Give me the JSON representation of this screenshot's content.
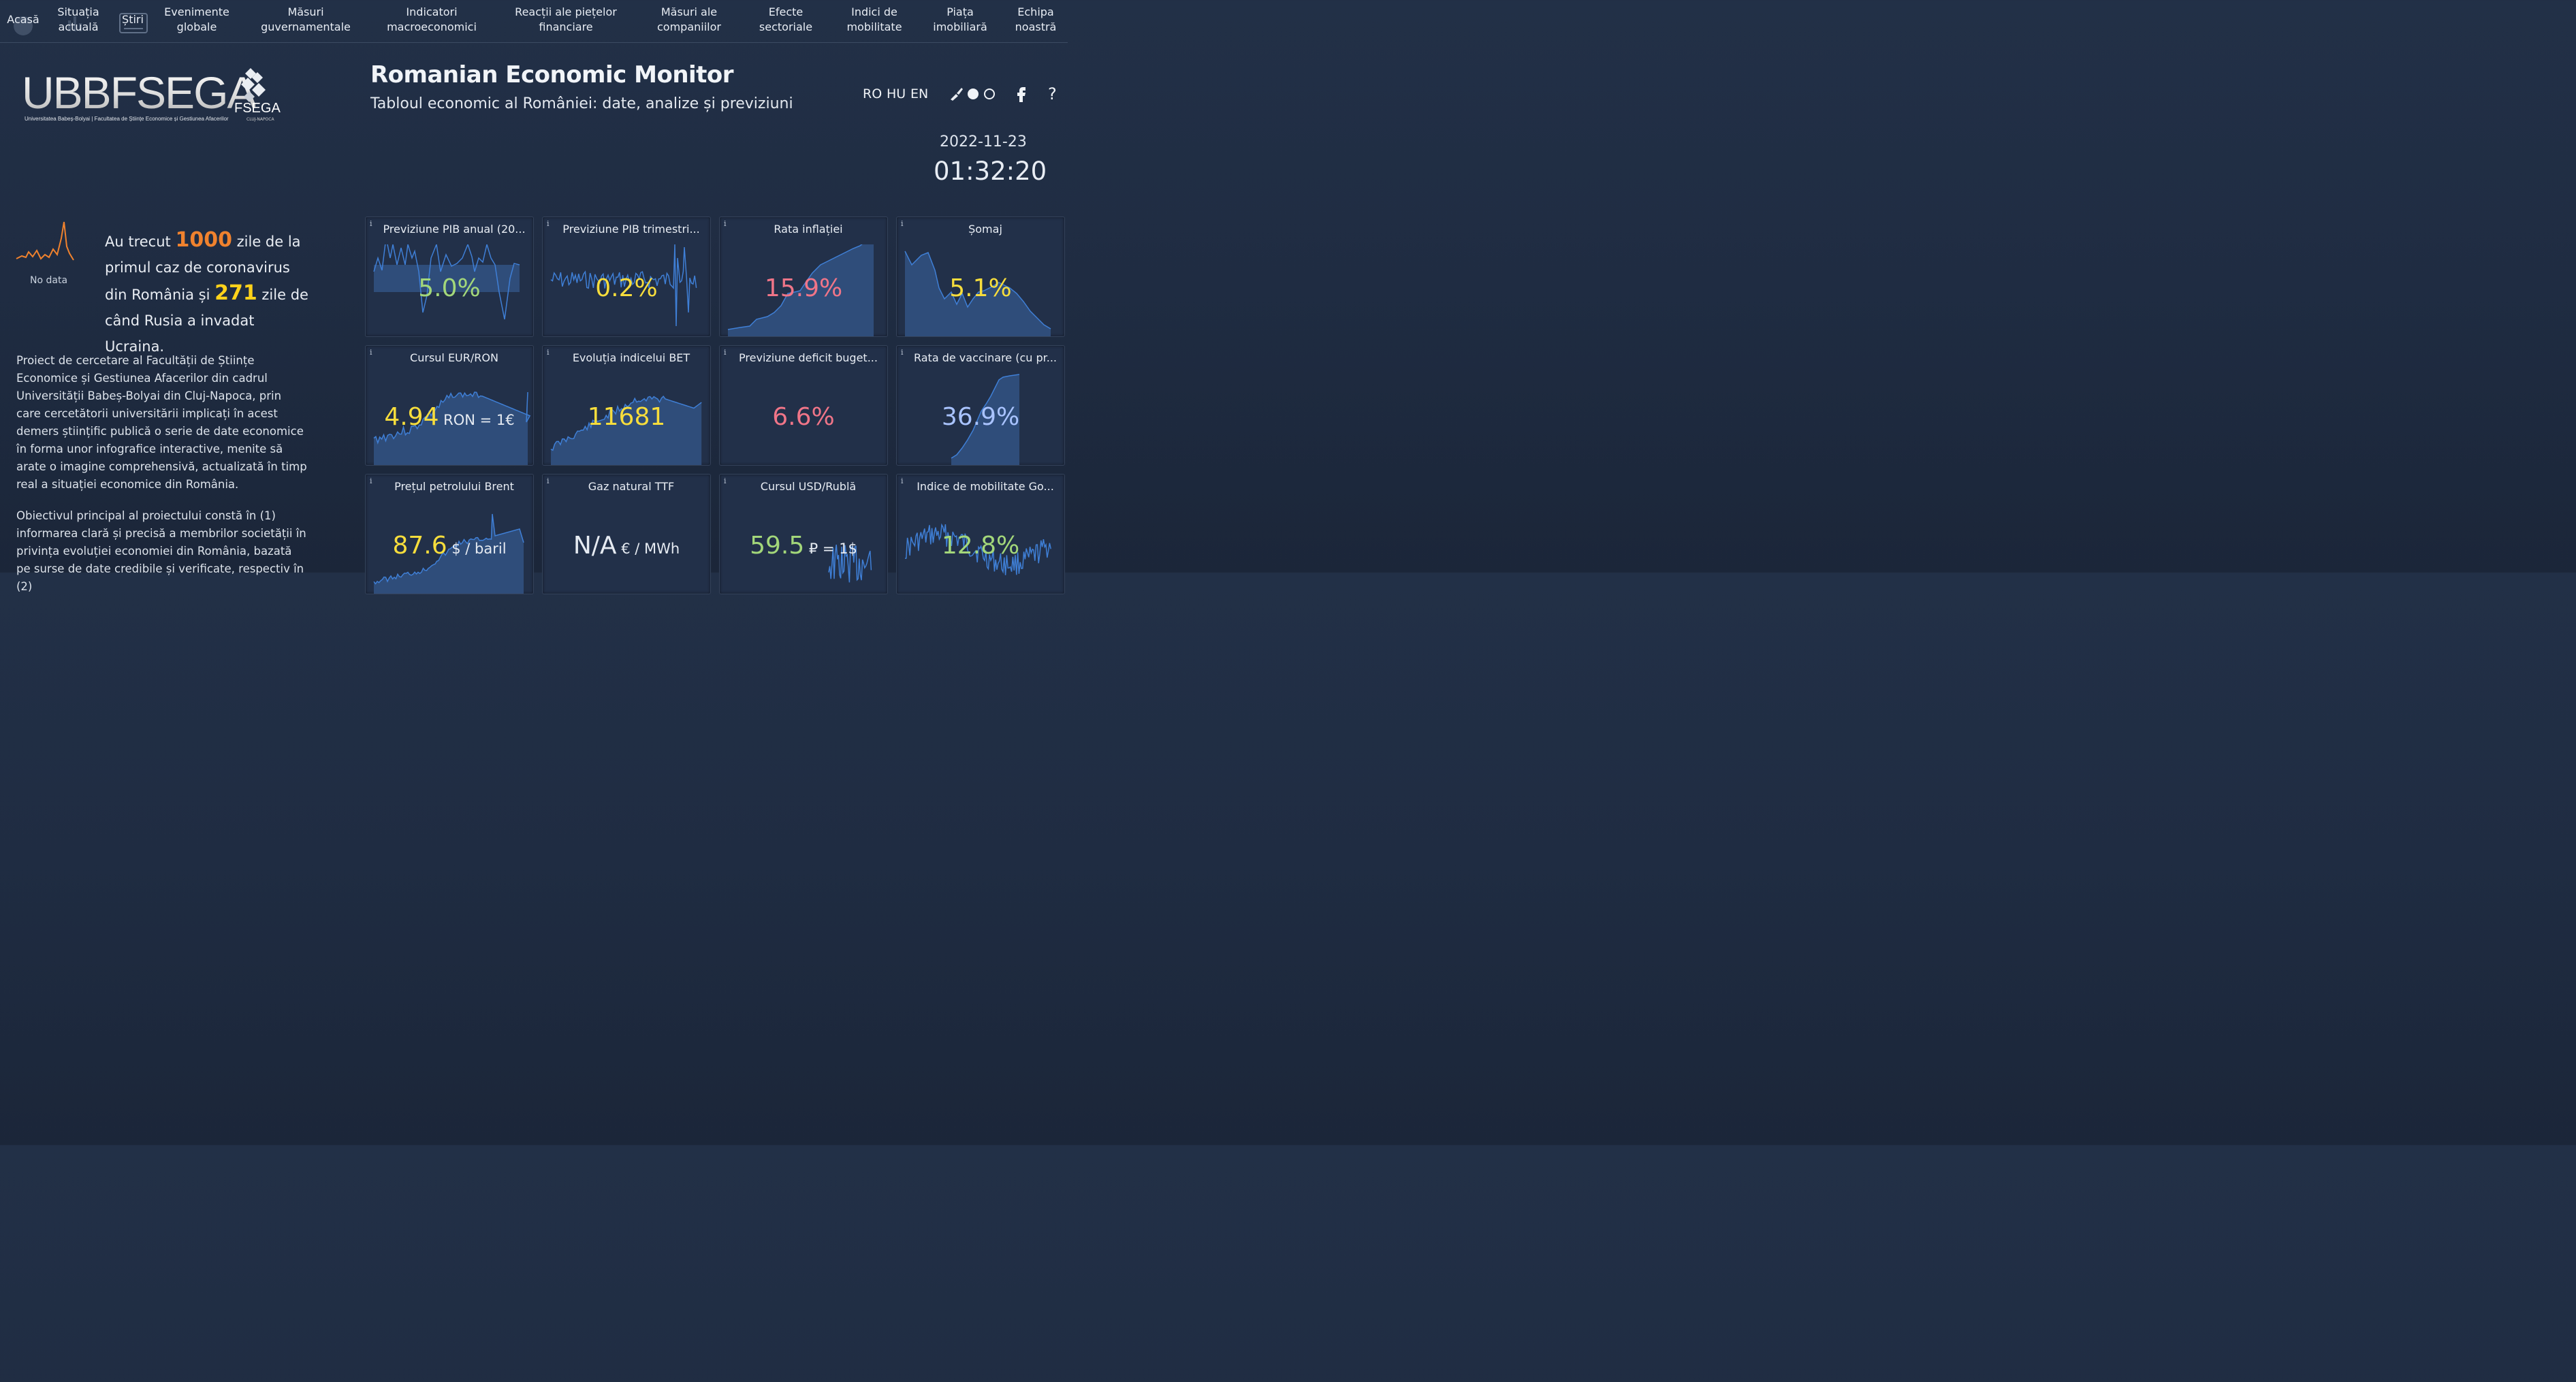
{
  "nav": [
    {
      "label": "Acasă",
      "name": "nav-acasa"
    },
    {
      "label": "Situația\nactuală",
      "name": "nav-situatia-actuala"
    },
    {
      "label": "Știri",
      "name": "nav-stiri"
    },
    {
      "label": "Evenimente\nglobale",
      "name": "nav-evenimente-globale"
    },
    {
      "label": "Măsuri\nguvernamentale",
      "name": "nav-masuri-guvernamentale"
    },
    {
      "label": "Indicatori\nmacroeconomici",
      "name": "nav-indicatori-macroeconomici"
    },
    {
      "label": "Reacții ale piețelor\nfinanciare",
      "name": "nav-reactii-piete-financiare"
    },
    {
      "label": "Măsuri ale\ncompaniilor",
      "name": "nav-masuri-companiilor"
    },
    {
      "label": "Efecte\nsectoriale",
      "name": "nav-efecte-sectoriale"
    },
    {
      "label": "Indici de\nmobilitate",
      "name": "nav-indici-mobilitate"
    },
    {
      "label": "Piața\nimobiliară",
      "name": "nav-piata-imobiliara"
    },
    {
      "label": "Echipa\nnoastră",
      "name": "nav-echipa-noastra"
    }
  ],
  "logo": {
    "main": "UBBFSEGA",
    "sub": "Universitatea Babeș-Bolyai | Facultatea de Științe Economice și Gestiunea Afacerilor",
    "fsega": "FSEGA",
    "city": "CLUJ-NAPOCA"
  },
  "header": {
    "title": "Romanian Economic Monitor",
    "subtitle": "Tabloul economic al României: date, analize și previziuni",
    "languages": [
      "RO",
      "HU",
      "EN"
    ],
    "date": "2022-11-23",
    "time": "01:32:20"
  },
  "icons": {
    "theme": "brush-icon",
    "facebook": "facebook-icon",
    "help": "question-icon"
  },
  "counter": {
    "no_data": "No data",
    "text1": "Au trecut ",
    "days_covid": "1000",
    "text2": " zile de la primul caz de coronavirus din România și ",
    "days_war": "271",
    "text3": " zile de când Rusia a invadat Ucraina."
  },
  "intro": {
    "p1": "Proiect de cercetare al Facultății de Științe Economice și Gestiunea Afacerilor din cadrul Universității Babeș-Bolyai din Cluj-Napoca, prin care cercetătorii universitării implicați în acest demers științific publică o serie de date economice în forma unor infografice interactive, menite să arate o imagine comprehensivă, actualizată în timp real a situației economice din România.",
    "p2": "Obiectivul principal al proiectului constă în (1) informarea clară și precisă a membrilor societății în privința evoluției economiei din România, bazată pe surse de date credibile și verificate, respectiv în (2)"
  },
  "colors": {
    "green": "#a3d77a",
    "yellow": "#f7dd3c",
    "red": "#f07588",
    "blue": "#a9c3ff",
    "spark_fill": "#2f4d7a",
    "spark_line": "#3f7fd6"
  },
  "cards": [
    {
      "title": "Previziune PIB anual (20...",
      "value": "5.0%",
      "unit": "",
      "color": "#a3d77a",
      "shape": "pib_anual"
    },
    {
      "title": "Previziune PIB trimestri...",
      "value": "0.2%",
      "unit": "",
      "color": "#f7dd3c",
      "shape": "pib_trim"
    },
    {
      "title": "Rata inflației",
      "value": "15.9%",
      "unit": "",
      "color": "#f07588",
      "shape": "inflatie"
    },
    {
      "title": "Șomaj",
      "value": "5.1%",
      "unit": "",
      "color": "#f7dd3c",
      "shape": "somaj"
    },
    {
      "title": "Cursul EUR/RON",
      "value": "4.94",
      "unit": " RON = 1€",
      "color": "#f7dd3c",
      "shape": "eurron"
    },
    {
      "title": "Evoluția indicelui BET",
      "value": "11681",
      "unit": "",
      "color": "#f7dd3c",
      "shape": "bet"
    },
    {
      "title": "Previziune deficit buget...",
      "value": "6.6%",
      "unit": "",
      "color": "#f07588",
      "shape": "none"
    },
    {
      "title": "Rata de vaccinare (cu pr...",
      "value": "36.9%",
      "unit": "",
      "color": "#a9c3ff",
      "shape": "vaccin"
    },
    {
      "title": "Prețul petrolului Brent",
      "value": "87.6",
      "unit": " $ / baril",
      "color": "#f7dd3c",
      "shape": "brent"
    },
    {
      "title": "Gaz natural TTF",
      "value": "N/A",
      "unit": " € / MWh",
      "color": "#e6ebf2",
      "shape": "none"
    },
    {
      "title": "Cursul USD/Rublă",
      "value": "59.5",
      "unit": " ₽ = 1$",
      "color": "#a3d77a",
      "shape": "usdrub"
    },
    {
      "title": "Indice de mobilitate Go...",
      "value": "12.8%",
      "unit": "",
      "color": "#a3d77a",
      "shape": "mobil"
    }
  ]
}
